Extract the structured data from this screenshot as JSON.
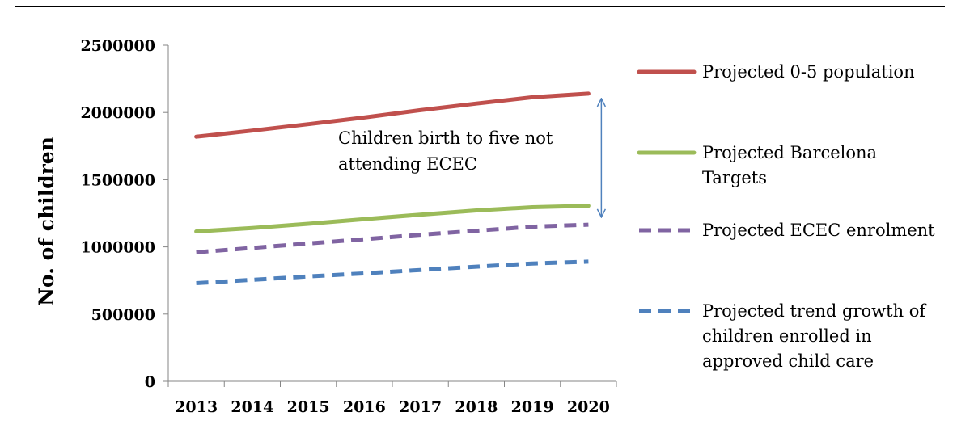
{
  "chart_data": {
    "type": "line",
    "ylabel": "No. of children",
    "xlabel": "",
    "categories": [
      "2013",
      "2014",
      "2015",
      "2016",
      "2017",
      "2018",
      "2019",
      "2020"
    ],
    "ylim": [
      0,
      2500000
    ],
    "yticks": [
      0,
      500000,
      1000000,
      1500000,
      2000000,
      2500000
    ],
    "ytick_labels": [
      "0",
      "500000",
      "1000000",
      "1500000",
      "2000000",
      "2500000"
    ],
    "grid": false,
    "legend_position": "right",
    "series": [
      {
        "name": "Projected 0-5 population",
        "style": "solid",
        "color": "#c0504d",
        "values": [
          1820000,
          1865000,
          1913000,
          1963000,
          2017000,
          2066000,
          2113000,
          2140000
        ]
      },
      {
        "name": "Projected Barcelona Targets",
        "style": "solid",
        "color": "#9bbb59",
        "values": [
          1115000,
          1140000,
          1172000,
          1206000,
          1240000,
          1271000,
          1295000,
          1305000
        ]
      },
      {
        "name": "Projected ECEC enrolment",
        "style": "dashed",
        "color": "#8064a2",
        "values": [
          960000,
          992000,
          1025000,
          1057000,
          1090000,
          1120000,
          1150000,
          1165000
        ]
      },
      {
        "name": "Projected trend growth of children enrolled in approved child care",
        "style": "dashed",
        "color": "#4f81bd",
        "values": [
          730000,
          755000,
          780000,
          803000,
          828000,
          853000,
          876000,
          890000
        ]
      }
    ],
    "legend_lines": [
      [
        "Projected 0-5 population"
      ],
      [
        "Projected Barcelona",
        "Targets"
      ],
      [
        "Projected ECEC enrolment"
      ],
      [
        "Projected trend growth of",
        "children enrolled in",
        "approved child care"
      ]
    ],
    "annotations": [
      {
        "text_lines": [
          "Children birth to five not",
          "attending ECEC"
        ],
        "arrow": {
          "color": "#4f81bd",
          "x_after": "2020",
          "from": 2140000,
          "to": 1185000
        }
      }
    ]
  }
}
